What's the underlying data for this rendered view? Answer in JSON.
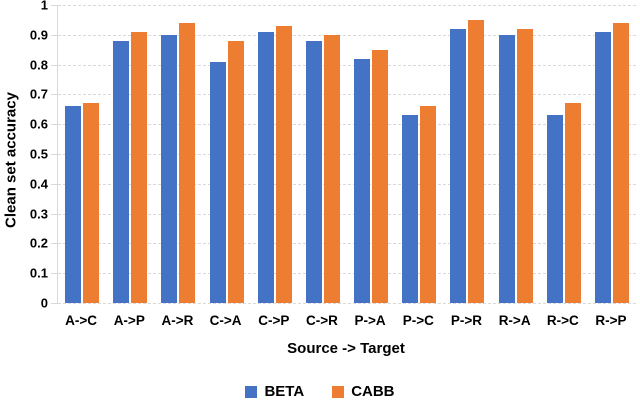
{
  "chart_data": {
    "type": "bar",
    "title": "",
    "xlabel": "Source -> Target",
    "ylabel": "Clean set accuracy",
    "ylim": [
      0,
      1
    ],
    "ytick_labels": [
      "0",
      "0.1",
      "0.2",
      "0.3",
      "0.4",
      "0.5",
      "0.6",
      "0.7",
      "0.8",
      "0.9",
      "1"
    ],
    "grid": "horizontal-dashed",
    "grid_color": "#D9D9D9",
    "axis_color": "#D9D9D9",
    "text_color": "#000000",
    "legend_position": "bottom",
    "categories": [
      "A->C",
      "A->P",
      "A->R",
      "C->A",
      "C->P",
      "C->R",
      "P->A",
      "P->C",
      "P->R",
      "R->A",
      "R->C",
      "R->P"
    ],
    "series": [
      {
        "name": "BETA",
        "color": "#4472C4",
        "values": [
          0.66,
          0.88,
          0.9,
          0.81,
          0.91,
          0.88,
          0.82,
          0.63,
          0.92,
          0.9,
          0.63,
          0.91
        ]
      },
      {
        "name": "CABB",
        "color": "#ED7D31",
        "values": [
          0.67,
          0.91,
          0.94,
          0.88,
          0.93,
          0.9,
          0.85,
          0.66,
          0.95,
          0.92,
          0.67,
          0.94
        ]
      }
    ]
  }
}
